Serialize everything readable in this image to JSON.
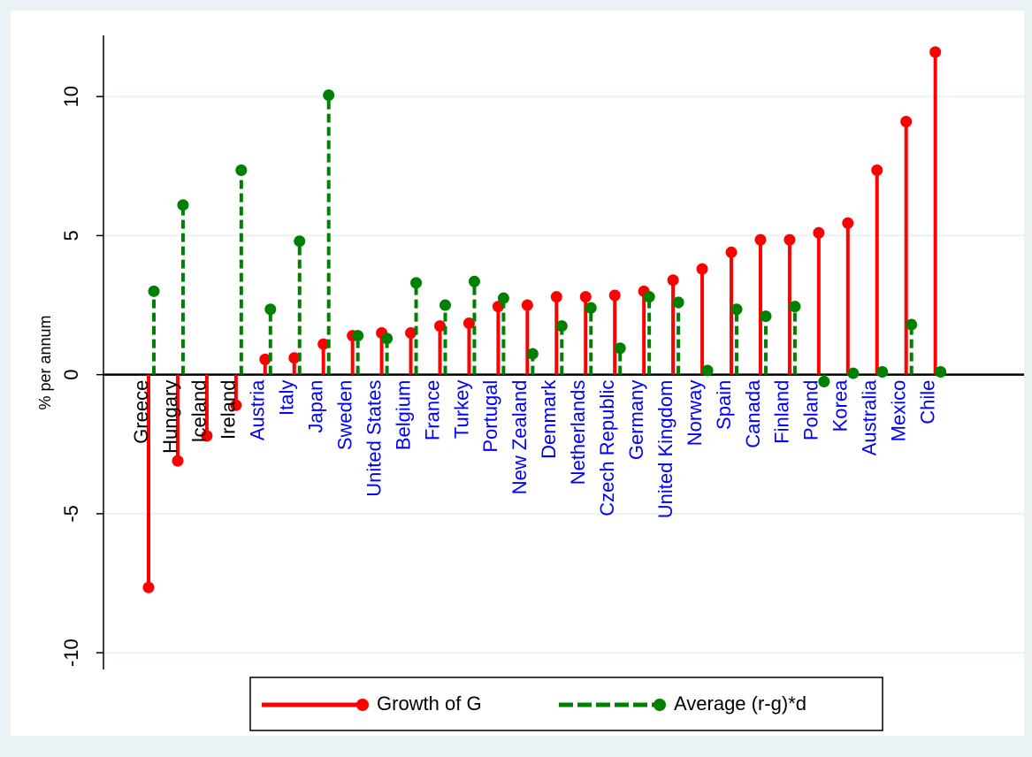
{
  "chart_data": {
    "type": "dropline",
    "y_label": "% per annum",
    "categories": [
      "Greece",
      "Hungary",
      "Iceland",
      "Ireland",
      "Austria",
      "Italy",
      "Japan",
      "Sweden",
      "United States",
      "Belgium",
      "France",
      "Turkey",
      "Portugal",
      "New Zealand",
      "Denmark",
      "Netherlands",
      "Czech Republic",
      "Germany",
      "United Kingdom",
      "Norway",
      "Spain",
      "Canada",
      "Finland",
      "Poland",
      "Korea",
      "Australia",
      "Mexico",
      "Chile"
    ],
    "category_colors": [
      "#000000",
      "#000000",
      "#000000",
      "#000000",
      "#0000ff",
      "#0000ff",
      "#0000ff",
      "#0000ff",
      "#0000ff",
      "#0000ff",
      "#0000ff",
      "#0000ff",
      "#0000ff",
      "#0000ff",
      "#0000ff",
      "#0000ff",
      "#0000ff",
      "#0000ff",
      "#0000ff",
      "#0000ff",
      "#0000ff",
      "#0000ff",
      "#0000ff",
      "#0000ff",
      "#0000ff",
      "#0000ff",
      "#0000ff",
      "#0000ff"
    ],
    "series": [
      {
        "name": "Growth of G",
        "color": "#ff0000",
        "dashed": false,
        "values": [
          -7.65,
          -3.1,
          -2.2,
          -1.1,
          0.55,
          0.6,
          1.1,
          1.4,
          1.5,
          1.5,
          1.75,
          1.85,
          2.45,
          2.5,
          2.8,
          2.8,
          2.85,
          3.0,
          3.4,
          3.8,
          4.4,
          4.85,
          4.85,
          5.1,
          5.45,
          7.35,
          9.1,
          11.6
        ]
      },
      {
        "name": "Average (r-g)*d",
        "color": "#008000",
        "dashed": true,
        "values": [
          3.0,
          6.1,
          null,
          7.35,
          2.35,
          4.8,
          10.05,
          1.4,
          1.3,
          3.3,
          2.5,
          3.35,
          2.75,
          0.75,
          1.75,
          2.4,
          0.95,
          2.8,
          2.6,
          0.15,
          2.35,
          2.1,
          2.45,
          -0.25,
          0.05,
          0.1,
          1.8,
          0.1
        ]
      }
    ],
    "ylim": [
      -10.6,
      12.2
    ],
    "yticks": [
      -10,
      -5,
      0,
      5,
      10
    ],
    "grid": true,
    "legend": "bottom"
  }
}
